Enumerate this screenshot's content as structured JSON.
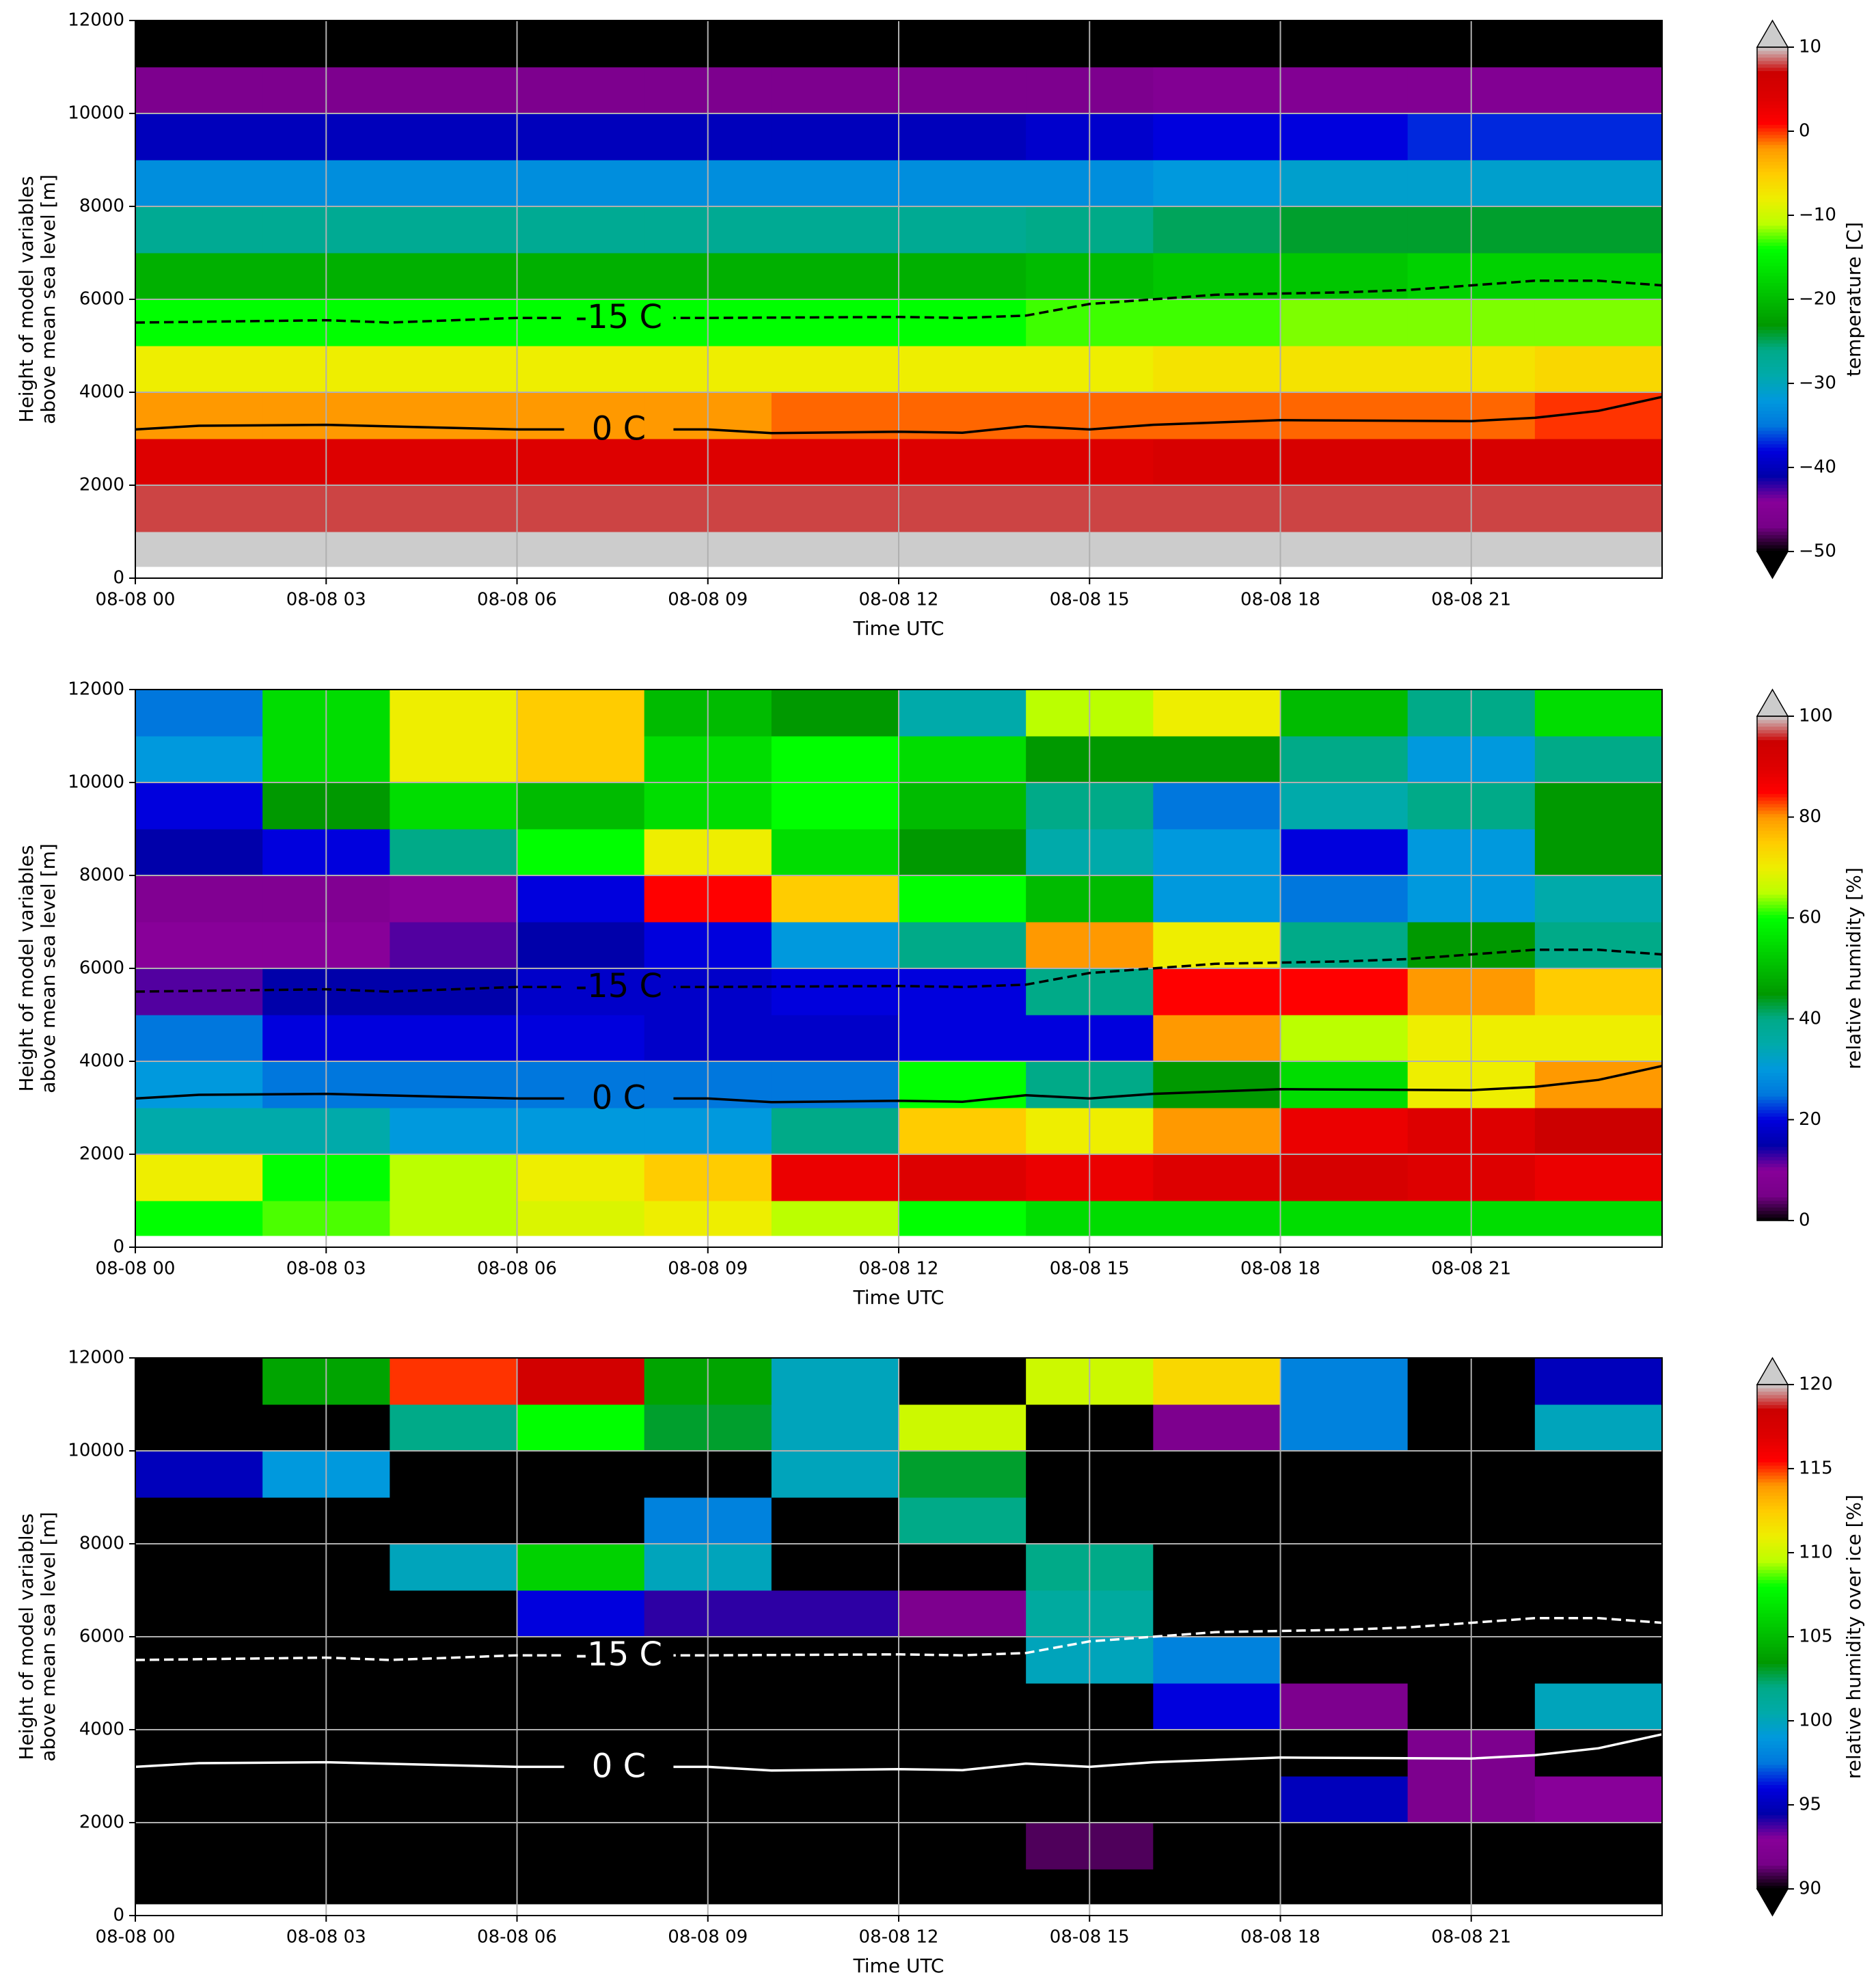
{
  "chart_data": [
    {
      "type": "heatmap",
      "xlabel": "Time UTC",
      "ylabel": [
        "Height of model variables",
        "above mean sea level [m]"
      ],
      "xlim": [
        0,
        24
      ],
      "ylim": [
        0,
        12000
      ],
      "xticks": [
        {
          "value": 0,
          "label": "08-08 00"
        },
        {
          "value": 3,
          "label": "08-08 03"
        },
        {
          "value": 6,
          "label": "08-08 06"
        },
        {
          "value": 9,
          "label": "08-08 09"
        },
        {
          "value": 12,
          "label": "08-08 12"
        },
        {
          "value": 15,
          "label": "08-08 15"
        },
        {
          "value": 18,
          "label": "08-08 18"
        },
        {
          "value": 21,
          "label": "08-08 21"
        }
      ],
      "yticks": [
        0,
        2000,
        4000,
        6000,
        8000,
        10000,
        12000
      ],
      "grid": true,
      "colormap": "nipy_spectral",
      "vmin": -50,
      "vmax": 10,
      "extend": "both",
      "colorbar_label": "temperature [C]",
      "colorbar_ticks": [
        {
          "value": -50,
          "label": "−50"
        },
        {
          "value": -40,
          "label": "−40"
        },
        {
          "value": -30,
          "label": "−30"
        },
        {
          "value": -20,
          "label": "−20"
        },
        {
          "value": -10,
          "label": "−10"
        },
        0,
        10
      ],
      "x_edges": [
        0,
        2,
        4,
        6,
        8,
        10,
        12,
        14,
        16,
        18,
        20,
        22,
        24
      ],
      "y_edges": [
        250,
        1000,
        2000,
        3000,
        4000,
        5000,
        6000,
        7000,
        8000,
        9000,
        10000,
        11000,
        12000
      ],
      "z": [
        [
          13,
          13,
          13,
          13,
          13,
          13,
          13,
          13,
          13,
          13,
          13,
          13
        ],
        [
          8,
          8,
          8,
          8,
          8,
          8,
          8,
          8,
          8,
          8,
          8,
          8
        ],
        [
          4,
          4,
          4,
          4,
          4,
          4,
          4,
          4,
          5,
          5,
          5,
          5
        ],
        [
          -2,
          -2,
          -2,
          -2,
          -2,
          -1,
          -1,
          -1,
          -1,
          -1,
          -1,
          0
        ],
        [
          -8,
          -8,
          -8,
          -8,
          -8,
          -8,
          -8,
          -8,
          -7,
          -7,
          -7,
          -6
        ],
        [
          -14,
          -14,
          -14,
          -14,
          -14,
          -14,
          -14,
          -13,
          -13,
          -12,
          -12,
          -12
        ],
        [
          -21,
          -21,
          -21,
          -21,
          -21,
          -21,
          -21,
          -20,
          -19,
          -19,
          -18,
          -18
        ],
        [
          -27,
          -27,
          -27,
          -27,
          -27,
          -27,
          -27,
          -26,
          -25,
          -24,
          -24,
          -24
        ],
        [
          -33,
          -33,
          -33,
          -33,
          -33,
          -33,
          -33,
          -33,
          -32,
          -31,
          -31,
          -31
        ],
        [
          -40,
          -40,
          -40,
          -40,
          -40,
          -40,
          -40,
          -39,
          -38,
          -38,
          -37,
          -37
        ],
        [
          -46,
          -46,
          -46,
          -46,
          -46,
          -46,
          -46,
          -46,
          -45,
          -45,
          -45,
          -45
        ],
        [
          -55,
          -55,
          -55,
          -55,
          -55,
          -55,
          -55,
          -55,
          -55,
          -55,
          -55,
          -55
        ]
      ],
      "contours": [
        {
          "label": "0 C",
          "style": "solid",
          "color": "#000000",
          "x": [
            0,
            1,
            3,
            6,
            9,
            10,
            12,
            13,
            14,
            15,
            16,
            18,
            21,
            22,
            23,
            23.5,
            24
          ],
          "values": [
            3200,
            3280,
            3300,
            3200,
            3200,
            3120,
            3150,
            3130,
            3270,
            3200,
            3300,
            3400,
            3380,
            3450,
            3600,
            3750,
            3900
          ]
        },
        {
          "label": "-15 C",
          "style": "dashed",
          "color": "#000000",
          "x": [
            0,
            3,
            4,
            6,
            9,
            12,
            13,
            14,
            15,
            17,
            19,
            20,
            21,
            22,
            23,
            24
          ],
          "values": [
            5500,
            5550,
            5500,
            5600,
            5600,
            5620,
            5600,
            5650,
            5900,
            6100,
            6150,
            6200,
            6300,
            6400,
            6400,
            6300
          ]
        }
      ]
    },
    {
      "type": "heatmap",
      "xlabel": "Time UTC",
      "ylabel": [
        "Height of model variables",
        "above mean sea level [m]"
      ],
      "xlim": [
        0,
        24
      ],
      "ylim": [
        0,
        12000
      ],
      "xticks": [
        {
          "value": 0,
          "label": "08-08 00"
        },
        {
          "value": 3,
          "label": "08-08 03"
        },
        {
          "value": 6,
          "label": "08-08 06"
        },
        {
          "value": 9,
          "label": "08-08 09"
        },
        {
          "value": 12,
          "label": "08-08 12"
        },
        {
          "value": 15,
          "label": "08-08 15"
        },
        {
          "value": 18,
          "label": "08-08 18"
        },
        {
          "value": 21,
          "label": "08-08 21"
        }
      ],
      "yticks": [
        0,
        2000,
        4000,
        6000,
        8000,
        10000,
        12000
      ],
      "grid": true,
      "colormap": "nipy_spectral",
      "vmin": 0,
      "vmax": 100,
      "extend": "max",
      "colorbar_label": "relative humidity [%]",
      "colorbar_ticks": [
        0,
        20,
        40,
        60,
        80,
        100
      ],
      "x_edges": [
        0,
        2,
        4,
        6,
        8,
        10,
        12,
        14,
        16,
        18,
        20,
        22,
        24
      ],
      "y_edges": [
        250,
        1000,
        2000,
        3000,
        4000,
        5000,
        6000,
        7000,
        8000,
        9000,
        10000,
        11000,
        12000
      ],
      "z": [
        [
          60,
          62,
          65,
          68,
          70,
          65,
          60,
          55,
          55,
          55,
          55,
          55
        ],
        [
          70,
          60,
          65,
          70,
          75,
          88,
          90,
          88,
          90,
          92,
          90,
          88
        ],
        [
          35,
          35,
          30,
          30,
          30,
          40,
          75,
          70,
          80,
          88,
          90,
          95
        ],
        [
          30,
          25,
          25,
          25,
          25,
          25,
          60,
          40,
          45,
          55,
          70,
          80
        ],
        [
          25,
          20,
          20,
          20,
          18,
          18,
          20,
          20,
          80,
          65,
          70,
          70
        ],
        [
          12,
          15,
          15,
          18,
          18,
          20,
          20,
          40,
          85,
          85,
          80,
          75
        ],
        [
          10,
          10,
          12,
          15,
          20,
          30,
          40,
          80,
          70,
          40,
          45,
          40
        ],
        [
          8,
          8,
          10,
          20,
          85,
          75,
          60,
          50,
          30,
          25,
          30,
          35
        ],
        [
          15,
          20,
          40,
          60,
          70,
          55,
          45,
          35,
          30,
          20,
          30,
          45
        ],
        [
          20,
          45,
          55,
          50,
          55,
          60,
          50,
          40,
          25,
          35,
          40,
          45
        ],
        [
          30,
          55,
          70,
          75,
          55,
          60,
          55,
          45,
          45,
          40,
          30,
          40
        ],
        [
          25,
          55,
          70,
          75,
          50,
          45,
          35,
          65,
          70,
          50,
          40,
          55
        ]
      ],
      "contours": [
        {
          "label": "0 C",
          "style": "solid",
          "color": "#000000",
          "x": [
            0,
            1,
            3,
            6,
            9,
            10,
            12,
            13,
            14,
            15,
            16,
            18,
            21,
            22,
            23,
            23.5,
            24
          ],
          "values": [
            3200,
            3280,
            3300,
            3200,
            3200,
            3120,
            3150,
            3130,
            3270,
            3200,
            3300,
            3400,
            3380,
            3450,
            3600,
            3750,
            3900
          ]
        },
        {
          "label": "-15 C",
          "style": "dashed",
          "color": "#000000",
          "x": [
            0,
            3,
            4,
            6,
            9,
            12,
            13,
            14,
            15,
            17,
            19,
            20,
            21,
            22,
            23,
            24
          ],
          "values": [
            5500,
            5550,
            5500,
            5600,
            5600,
            5620,
            5600,
            5650,
            5900,
            6100,
            6150,
            6200,
            6300,
            6400,
            6400,
            6300
          ]
        }
      ]
    },
    {
      "type": "heatmap",
      "xlabel": "Time UTC",
      "ylabel": [
        "Height of model variables",
        "above mean sea level [m]"
      ],
      "xlim": [
        0,
        24
      ],
      "ylim": [
        0,
        12000
      ],
      "xticks": [
        {
          "value": 0,
          "label": "08-08 00"
        },
        {
          "value": 3,
          "label": "08-08 03"
        },
        {
          "value": 6,
          "label": "08-08 06"
        },
        {
          "value": 9,
          "label": "08-08 09"
        },
        {
          "value": 12,
          "label": "08-08 12"
        },
        {
          "value": 15,
          "label": "08-08 15"
        },
        {
          "value": 18,
          "label": "08-08 18"
        },
        {
          "value": 21,
          "label": "08-08 21"
        }
      ],
      "yticks": [
        0,
        2000,
        4000,
        6000,
        8000,
        10000,
        12000
      ],
      "grid": true,
      "colormap": "nipy_spectral",
      "vmin": 90,
      "vmax": 120,
      "extend": "both",
      "colorbar_label": "relative humidity over ice [%]",
      "colorbar_ticks": [
        90,
        95,
        100,
        105,
        110,
        115,
        120
      ],
      "x_edges": [
        0,
        2,
        4,
        6,
        8,
        10,
        12,
        14,
        16,
        18,
        20,
        22,
        24
      ],
      "y_edges": [
        250,
        1000,
        2000,
        3000,
        4000,
        5000,
        6000,
        7000,
        8000,
        9000,
        10000,
        11000,
        12000
      ],
      "z": [
        [
          80,
          80,
          80,
          80,
          80,
          80,
          80,
          80,
          80,
          80,
          80,
          80
        ],
        [
          80,
          80,
          80,
          80,
          80,
          80,
          80,
          91,
          80,
          80,
          80,
          80
        ],
        [
          80,
          80,
          80,
          80,
          80,
          80,
          80,
          80,
          80,
          95,
          92,
          93
        ],
        [
          80,
          80,
          80,
          80,
          80,
          80,
          80,
          80,
          80,
          80,
          92,
          80
        ],
        [
          80,
          80,
          80,
          80,
          80,
          80,
          80,
          80,
          96,
          92,
          80,
          100
        ],
        [
          80,
          80,
          80,
          80,
          80,
          80,
          80,
          100,
          98,
          80,
          80,
          80
        ],
        [
          80,
          80,
          80,
          96,
          94,
          94,
          92,
          101,
          80,
          80,
          80,
          80
        ],
        [
          80,
          80,
          100,
          106,
          100,
          80,
          80,
          102,
          80,
          80,
          80,
          80
        ],
        [
          80,
          80,
          80,
          80,
          98,
          80,
          102,
          80,
          80,
          80,
          80,
          80
        ],
        [
          95,
          99,
          80,
          80,
          80,
          100,
          103,
          80,
          80,
          80,
          80,
          80
        ],
        [
          80,
          80,
          102,
          108,
          103,
          100,
          110,
          80,
          92,
          98,
          80,
          100
        ],
        [
          80,
          104,
          115,
          118,
          104,
          100,
          80,
          110,
          112,
          98,
          80,
          95
        ]
      ],
      "contours": [
        {
          "label": "0 C",
          "style": "solid",
          "color": "#ffffff",
          "x": [
            0,
            1,
            3,
            6,
            9,
            10,
            12,
            13,
            14,
            15,
            16,
            18,
            21,
            22,
            23,
            23.5,
            24
          ],
          "values": [
            3200,
            3280,
            3300,
            3200,
            3200,
            3120,
            3150,
            3130,
            3270,
            3200,
            3300,
            3400,
            3380,
            3450,
            3600,
            3750,
            3900
          ]
        },
        {
          "label": "-15 C",
          "style": "dashed",
          "color": "#ffffff",
          "x": [
            0,
            3,
            4,
            6,
            9,
            12,
            13,
            14,
            15,
            17,
            19,
            20,
            21,
            22,
            23,
            24
          ],
          "values": [
            5500,
            5550,
            5500,
            5600,
            5600,
            5620,
            5600,
            5650,
            5900,
            6100,
            6150,
            6200,
            6300,
            6400,
            6400,
            6300
          ]
        }
      ]
    }
  ]
}
